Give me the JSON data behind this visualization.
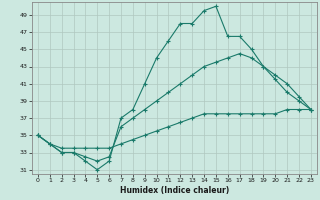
{
  "xlabel": "Humidex (Indice chaleur)",
  "background_color": "#cce8e0",
  "grid_color": "#b0c8c0",
  "line_color": "#1a7a6a",
  "xlim": [
    -0.5,
    23.5
  ],
  "ylim": [
    30.5,
    50.5
  ],
  "yticks": [
    31,
    33,
    35,
    37,
    39,
    41,
    43,
    45,
    47,
    49
  ],
  "xticks": [
    0,
    1,
    2,
    3,
    4,
    5,
    6,
    7,
    8,
    9,
    10,
    11,
    12,
    13,
    14,
    15,
    16,
    17,
    18,
    19,
    20,
    21,
    22,
    23
  ],
  "series": [
    [
      35,
      34,
      33,
      33,
      32,
      31,
      32,
      37,
      38,
      41,
      44,
      46,
      48,
      48,
      49.5,
      50,
      46.5,
      46.5,
      45,
      43,
      41.5,
      40,
      39,
      38
    ],
    [
      35,
      34,
      33,
      33,
      32.5,
      32,
      32.5,
      36,
      37,
      38,
      39,
      40,
      41,
      42,
      43,
      43.5,
      44,
      44.5,
      44,
      43,
      42,
      41,
      39.5,
      38
    ],
    [
      35,
      34,
      33.5,
      33.5,
      33.5,
      33.5,
      33.5,
      34,
      34.5,
      35,
      35.5,
      36,
      36.5,
      37,
      37.5,
      37.5,
      37.5,
      37.5,
      37.5,
      37.5,
      37.5,
      38,
      38,
      38
    ]
  ]
}
